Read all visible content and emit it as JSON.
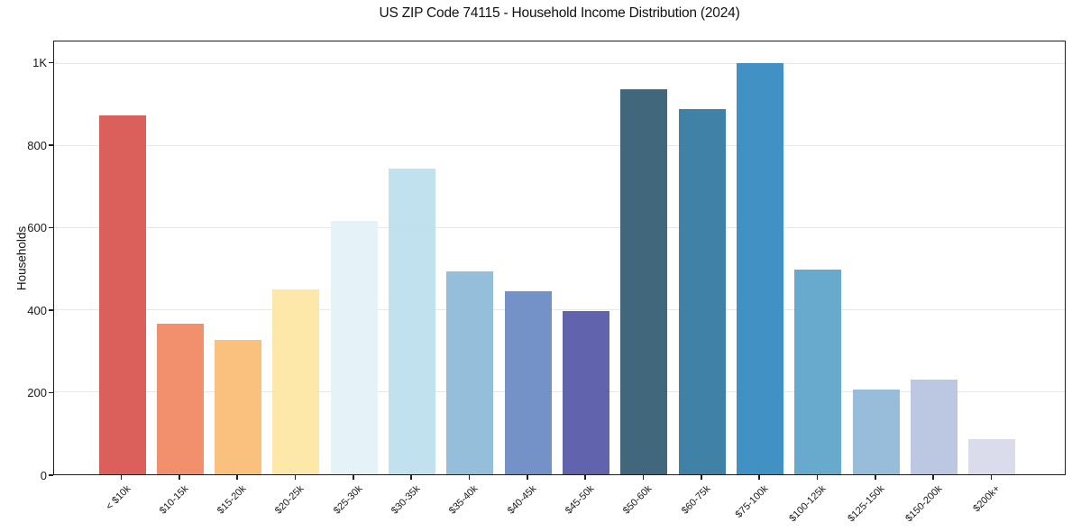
{
  "page": {
    "background_color": "#ffffff",
    "text_color": "#1a1a1a"
  },
  "chart_data": {
    "type": "bar",
    "title": "US ZIP Code 74115 - Household Income Distribution (2024)",
    "xlabel": "",
    "ylabel": "Households",
    "categories": [
      "< $10k",
      "$10-15k",
      "$15-20k",
      "$20-25k",
      "$25-30k",
      "$30-35k",
      "$35-40k",
      "$40-45k",
      "$45-50k",
      "$50-60k",
      "$60-75k",
      "$75-100k",
      "$100-125k",
      "$125-150k",
      "$150-200k",
      "$200k+"
    ],
    "values": [
      875,
      367,
      328,
      450,
      617,
      745,
      494,
      446,
      398,
      937,
      889,
      1002,
      498,
      206,
      230,
      85
    ],
    "bar_colors": [
      "#da5a55",
      "#f18a67",
      "#fabd78",
      "#fde7a6",
      "#e4f1f7",
      "#c0e0ee",
      "#91bbd9",
      "#6e8ec5",
      "#5b5ea9",
      "#386176",
      "#387ca3",
      "#3a8cc3",
      "#62a7cc",
      "#93bad8",
      "#b9c6e0",
      "#d9daea"
    ],
    "ylim": [
      0,
      1054
    ],
    "yticks": [
      {
        "value": 0,
        "label": "0"
      },
      {
        "value": 200,
        "label": "200"
      },
      {
        "value": 400,
        "label": "400"
      },
      {
        "value": 600,
        "label": "600"
      },
      {
        "value": 800,
        "label": "800"
      },
      {
        "value": 1000,
        "label": "1K"
      }
    ],
    "grid": {
      "horizontal": true,
      "vertical": false,
      "color": "#e8e8e8"
    },
    "legend": "none",
    "axis_color": "#1f1f1f"
  }
}
